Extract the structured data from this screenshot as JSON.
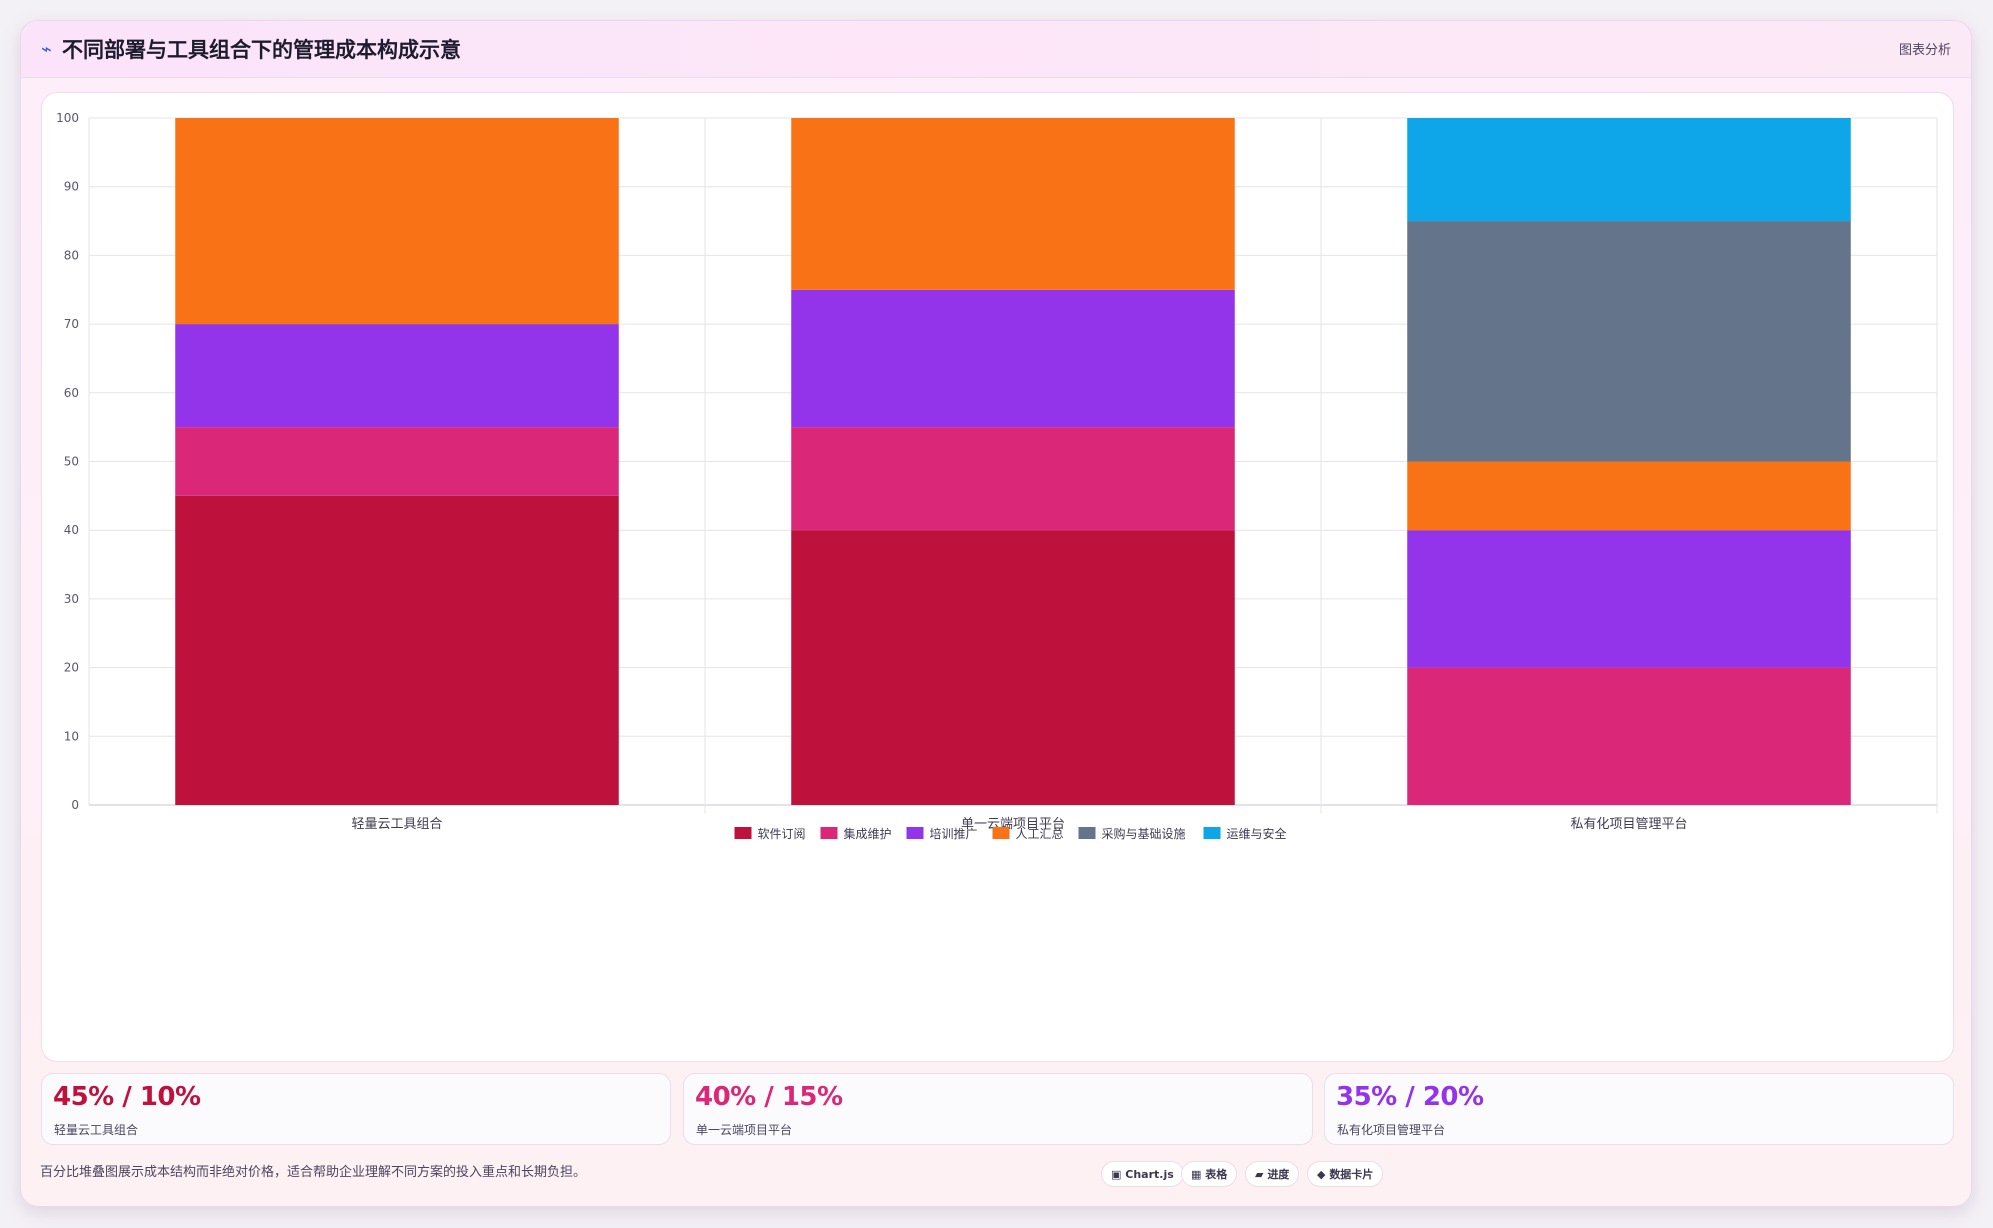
{
  "header": {
    "icon": "trend-icon",
    "title": "不同部署与工具组合下的管理成本构成示意",
    "link_label": "图表分析"
  },
  "chart_data": {
    "type": "bar",
    "stacked": true,
    "categories": [
      "轻量云工具组合",
      "单一云端项目平台",
      "私有化项目管理平台"
    ],
    "ylim": [
      0,
      100
    ],
    "yticks": [
      0,
      10,
      20,
      30,
      40,
      50,
      60,
      70,
      80,
      90,
      100
    ],
    "grid": true,
    "legend": "bottom",
    "series": [
      {
        "name": "软件订阅",
        "color": "#be123c",
        "values": [
          45,
          40,
          0
        ]
      },
      {
        "name": "集成维护",
        "color": "#db2777",
        "values": [
          10,
          15,
          20
        ]
      },
      {
        "name": "培训推广",
        "color": "#9333ea",
        "values": [
          15,
          20,
          20
        ]
      },
      {
        "name": "人工汇总",
        "color": "#f97316",
        "values": [
          30,
          25,
          10
        ]
      },
      {
        "name": "采购与基础设施",
        "color": "#64748b",
        "values": [
          0,
          0,
          35
        ]
      },
      {
        "name": "运维与安全",
        "color": "#0ea5e9",
        "values": [
          0,
          0,
          15
        ]
      }
    ]
  },
  "kpis": [
    {
      "value": "45% / 10%",
      "label": "轻量云工具组合",
      "color": "#be123c"
    },
    {
      "value": "40% / 15%",
      "label": "单一云端项目平台",
      "color": "#db2777"
    },
    {
      "value": "35% / 20%",
      "label": "私有化项目管理平台",
      "color": "#9333ea"
    }
  ],
  "footnote": "百分比堆叠图展示成本结构而非绝对价格，适合帮助企业理解不同方案的投入重点和长期负担。",
  "chips": [
    {
      "icon": "chart-icon",
      "glyph": "▣",
      "label": "Chart.js"
    },
    {
      "icon": "table-icon",
      "glyph": "▦",
      "label": "表格"
    },
    {
      "icon": "progress-icon",
      "glyph": "▰",
      "label": "进度"
    },
    {
      "icon": "diamond-icon",
      "glyph": "◆",
      "label": "数据卡片"
    }
  ]
}
